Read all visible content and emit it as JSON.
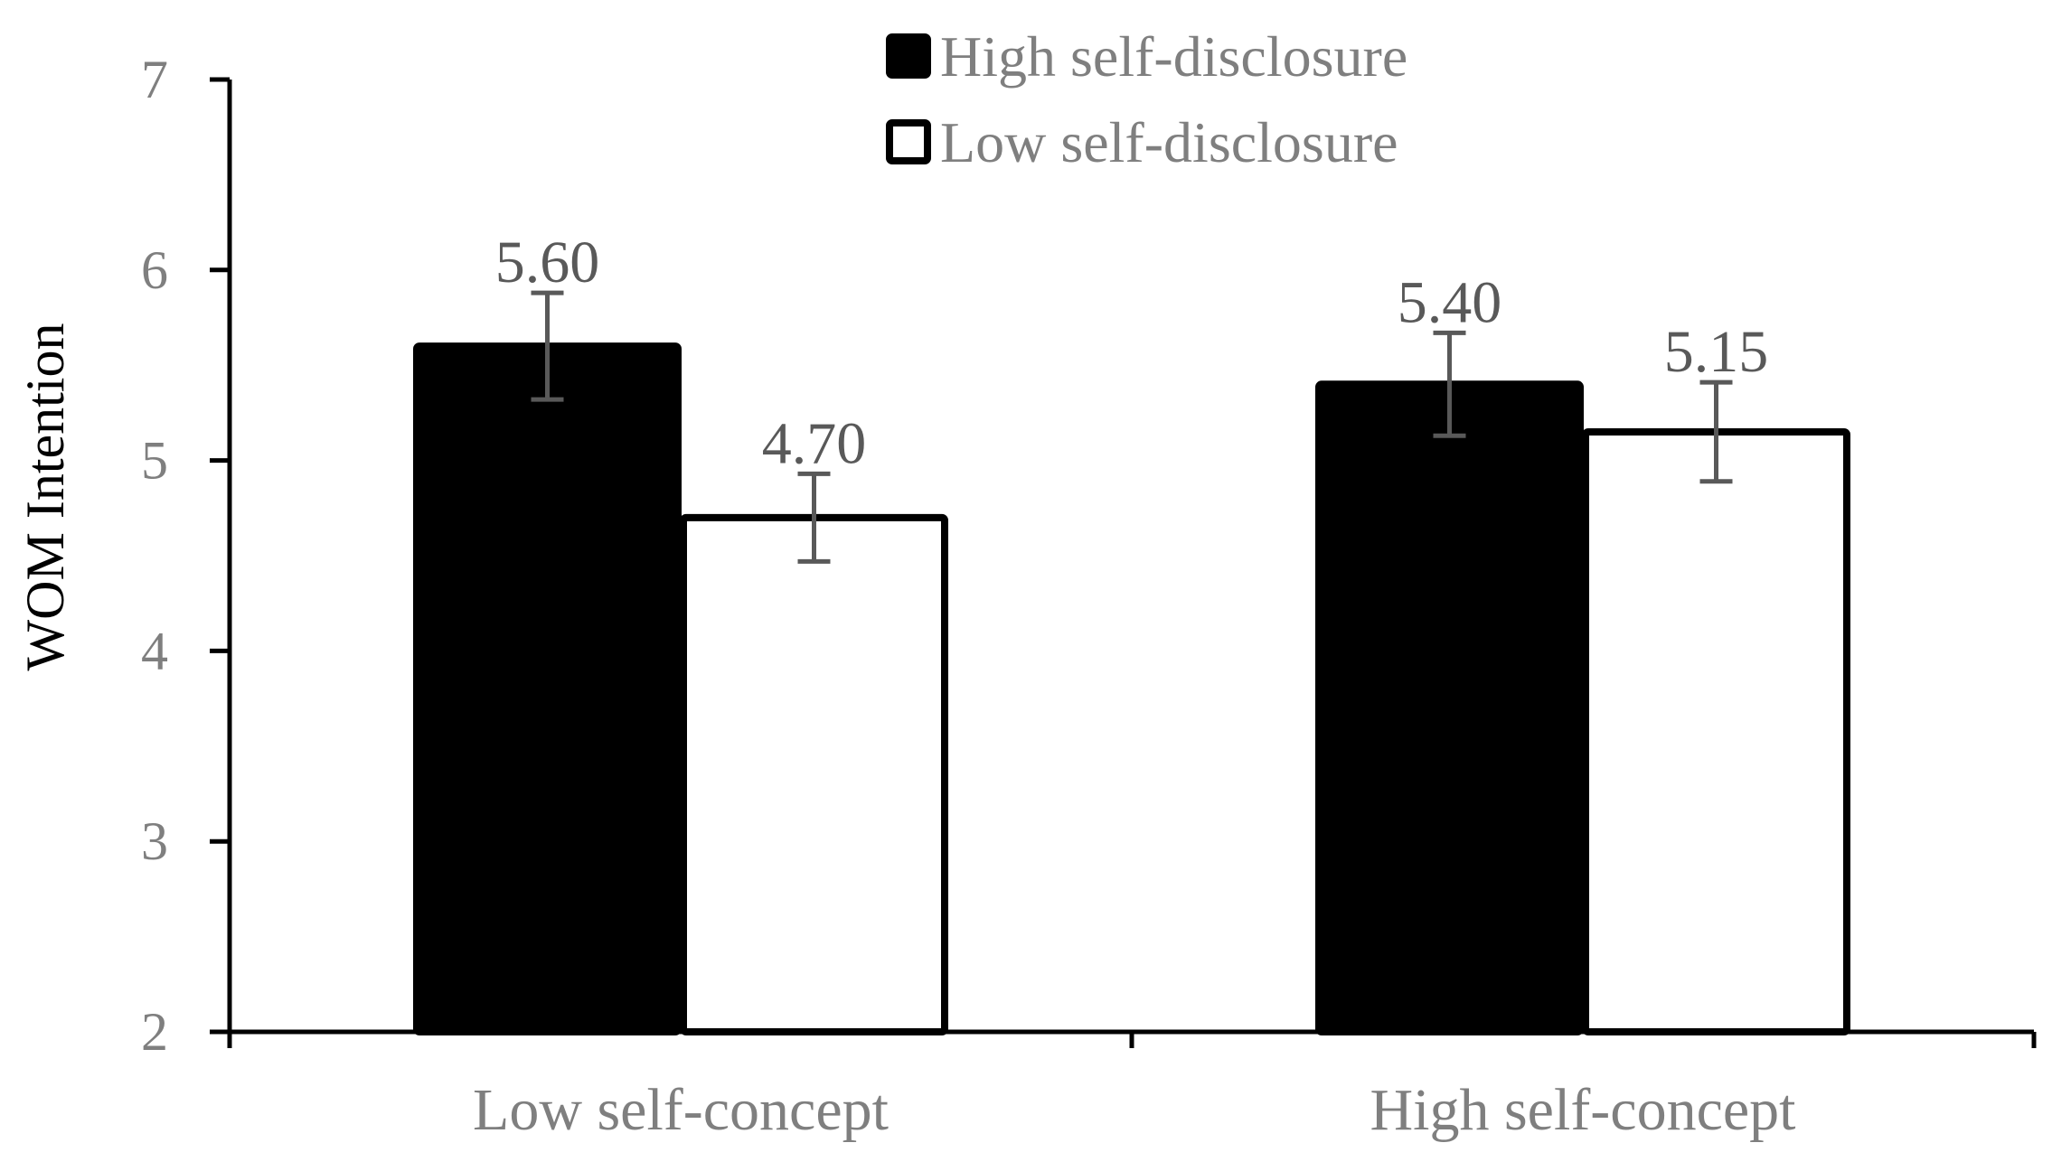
{
  "chart_data": {
    "type": "bar",
    "title": "",
    "xlabel": "",
    "ylabel": "WOM Intention",
    "ylim": [
      2,
      7
    ],
    "yticks": [
      "2",
      "3",
      "4",
      "5",
      "6",
      "7"
    ],
    "categories": [
      "Low self-concept",
      "High self-concept"
    ],
    "series": [
      {
        "name": "High self-disclosure",
        "values": [
          5.6,
          5.4
        ],
        "data_labels": [
          "5.60",
          "5.40"
        ],
        "error": [
          0.28,
          0.27
        ],
        "fill": "#000000",
        "stroke": "#000000"
      },
      {
        "name": "Low self-disclosure",
        "values": [
          4.7,
          5.15
        ],
        "data_labels": [
          "4.70",
          "5.15"
        ],
        "error": [
          0.23,
          0.26
        ],
        "fill": "#ffffff",
        "stroke": "#000000"
      }
    ],
    "legend_position": "top-center",
    "grid": false,
    "colors": {
      "axis": "#000000",
      "tick_text": "#7f7f7f",
      "data_label_text": "#595959",
      "error_bar": "#595959",
      "axis_title": "#000000"
    }
  }
}
